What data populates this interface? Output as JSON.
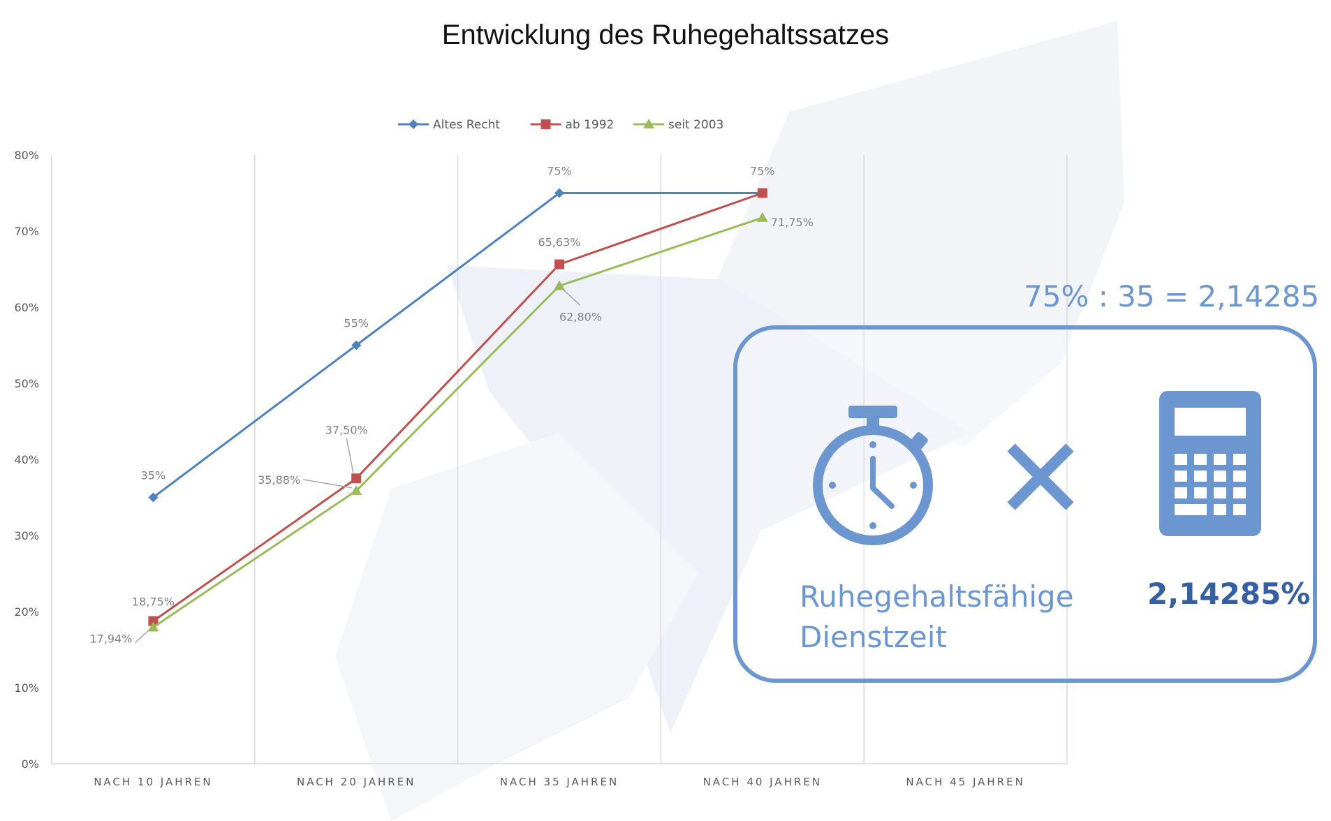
{
  "page_title": "Entwicklung des Ruhegehaltssatzes",
  "chart_data": {
    "type": "line",
    "title": "",
    "xlabel": "",
    "ylabel": "",
    "categories": [
      "NACH 10 JAHREN",
      "NACH 20 JAHREN",
      "NACH 35 JAHREN",
      "NACH 40 JAHREN",
      "NACH 45 JAHREN"
    ],
    "ylim": [
      0,
      80
    ],
    "y_ticks": [
      0,
      10,
      20,
      30,
      40,
      50,
      60,
      70,
      80
    ],
    "y_tick_labels": [
      "0%",
      "10%",
      "20%",
      "30%",
      "40%",
      "50%",
      "60%",
      "70%",
      "80%"
    ],
    "grid": "vertical",
    "legend_position": "top",
    "series": [
      {
        "name": "Altes Recht",
        "color": "#4f81bd",
        "marker": "diamond",
        "values": [
          35,
          55,
          75,
          75,
          null
        ],
        "labels": [
          "35%",
          "55%",
          "75%",
          "75%",
          null
        ]
      },
      {
        "name": "ab 1992",
        "color": "#c0504d",
        "marker": "square",
        "values": [
          18.75,
          37.5,
          65.63,
          75,
          null
        ],
        "labels": [
          "18,75%",
          "37,50%",
          "65,63%",
          "",
          null
        ]
      },
      {
        "name": "seit 2003",
        "color": "#9bbb59",
        "marker": "triangle",
        "values": [
          17.94,
          35.88,
          62.8,
          71.75,
          null
        ],
        "labels": [
          "17,94%",
          "35,88%",
          "62,80%",
          "71,75%",
          null
        ]
      }
    ]
  },
  "info_panel": {
    "formula": "75% : 35 = 2,14285",
    "left_label_line1": "Ruhegehaltsfähige",
    "left_label_line2": "Dienstzeit",
    "right_value": "2,14285%",
    "icons": [
      "stopwatch-icon",
      "multiply-icon",
      "calculator-icon"
    ],
    "accent_color": "#6b96cf",
    "value_color": "#355fa0"
  }
}
